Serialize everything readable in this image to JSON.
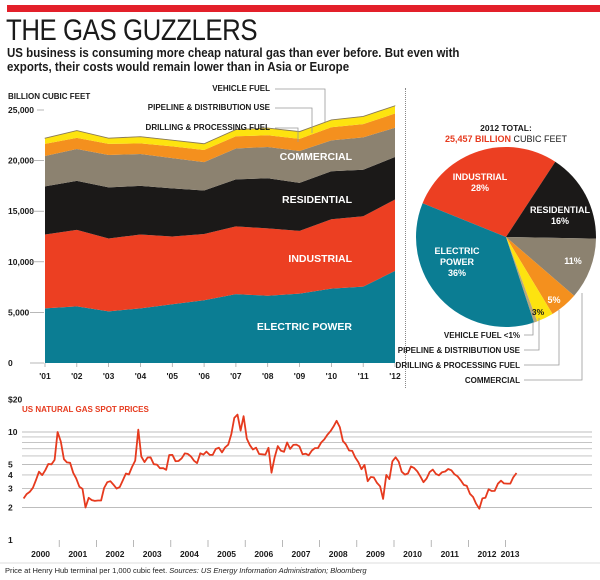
{
  "header": {
    "title": "THE GAS GUZZLERS",
    "subtitle": "US business is consuming more cheap natural gas than ever before. But even with exports, their costs would remain lower than in Asia or Europe"
  },
  "footnote": {
    "text": "Price at Henry Hub terminal per 1,000 cubic feet. ",
    "sources": "Sources: US Energy Information Administration; Bloomberg"
  },
  "chart_data": [
    {
      "type": "area",
      "stacked": true,
      "ylabel": "BILLION CUBIC FEET",
      "ylim": [
        0,
        25000
      ],
      "yticks": [
        "0",
        "5,000",
        "10,000",
        "15,000",
        "20,000",
        "25,000"
      ],
      "categories": [
        "'01",
        "'02",
        "'03",
        "'04",
        "'05",
        "'06",
        "'07",
        "'08",
        "'09",
        "'10",
        "'11",
        "'12"
      ],
      "series": [
        {
          "name": "ELECTRIC POWER",
          "color": "#0b7d93",
          "values": [
            5400,
            5600,
            5100,
            5400,
            5800,
            6200,
            6800,
            6650,
            6850,
            7350,
            7550,
            9100
          ]
        },
        {
          "name": "INDUSTRIAL",
          "color": "#ec3f22",
          "values": [
            7300,
            7550,
            7200,
            7300,
            6700,
            6550,
            6700,
            6650,
            6200,
            6850,
            6950,
            7050
          ]
        },
        {
          "name": "RESIDENTIAL",
          "color": "#1b1918",
          "values": [
            4750,
            4850,
            5050,
            4800,
            4750,
            4300,
            4650,
            4950,
            4750,
            4750,
            4600,
            4200
          ]
        },
        {
          "name": "COMMERCIAL",
          "color": "#8c8270",
          "values": [
            3000,
            3150,
            3200,
            3150,
            3000,
            2800,
            3050,
            3100,
            3150,
            3050,
            3200,
            2900
          ]
        },
        {
          "name": "DRILLING & PROCESSING FUEL",
          "color": "#f4901e",
          "values": [
            1200,
            1100,
            1100,
            1050,
            1150,
            1200,
            1200,
            1150,
            1200,
            1300,
            1300,
            1400
          ]
        },
        {
          "name": "PIPELINE & DISTRIBUTION USE",
          "color": "#fde30f",
          "values": [
            550,
            700,
            550,
            650,
            600,
            600,
            650,
            700,
            700,
            700,
            750,
            750
          ]
        },
        {
          "name": "VEHICLE FUEL",
          "color": "#b9a77a",
          "values": [
            30,
            30,
            30,
            30,
            30,
            30,
            30,
            30,
            30,
            30,
            30,
            30
          ]
        }
      ]
    },
    {
      "type": "pie",
      "title": "2012 TOTAL:",
      "total_value": "25,457 BILLION",
      "total_unit": "CUBIC FEET",
      "slices": [
        {
          "name": "INDUSTRIAL",
          "label": "28%",
          "value": 28,
          "color": "#ec3f22"
        },
        {
          "name": "RESIDENTIAL",
          "label": "16%",
          "value": 16,
          "color": "#1b1918"
        },
        {
          "name": "COMMERCIAL",
          "label": "11%",
          "value": 11,
          "color": "#8c8270"
        },
        {
          "name": "DRILLING & PROCESSING FUEL",
          "label": "5%",
          "value": 5,
          "color": "#f4901e"
        },
        {
          "name": "PIPELINE & DISTRIBUTION USE",
          "label": "3%",
          "value": 3,
          "color": "#fde30f"
        },
        {
          "name": "VEHICLE FUEL",
          "label": "<1%",
          "value": 0.6,
          "color": "#b9a77a"
        },
        {
          "name": "ELECTRIC POWER",
          "label": "36%",
          "value": 36,
          "color": "#0b7d93"
        }
      ],
      "callouts": [
        "VEHICLE FUEL <1%",
        "PIPELINE & DISTRIBUTION USE",
        "DRILLING & PROCESSING FUEL",
        "COMMERCIAL"
      ]
    },
    {
      "type": "line",
      "title": "US NATURAL GAS SPOT PRICES",
      "yscale": "log",
      "ylim": [
        1,
        20
      ],
      "yticks": [
        "1",
        "2",
        "3",
        "4",
        "5",
        "10",
        "$20"
      ],
      "gridlines": [
        2,
        3,
        4,
        5,
        6,
        7,
        8,
        9,
        10
      ],
      "xticks": [
        "2000",
        "2001",
        "2002",
        "2003",
        "2004",
        "2005",
        "2006",
        "2007",
        "2008",
        "2009",
        "2010",
        "2011",
        "2012",
        "2013"
      ],
      "color": "#e63a1e",
      "x_start": "2000-01",
      "frequency": "monthly",
      "values": [
        2.42,
        2.66,
        2.79,
        3.04,
        3.59,
        4.29,
        3.99,
        4.43,
        5.06,
        5.02,
        5.52,
        10.0,
        8.17,
        5.61,
        5.23,
        5.19,
        4.19,
        3.72,
        3.11,
        2.97,
        2.0,
        2.46,
        2.34,
        2.3,
        2.32,
        2.32,
        3.03,
        3.43,
        3.5,
        3.26,
        2.99,
        3.09,
        3.55,
        4.13,
        4.04,
        4.74,
        5.43,
        10.5,
        5.93,
        5.26,
        5.81,
        5.82,
        5.03,
        4.99,
        4.62,
        4.63,
        4.47,
        6.13,
        6.14,
        5.37,
        5.39,
        5.71,
        6.33,
        6.27,
        5.93,
        5.41,
        5.15,
        6.35,
        6.17,
        6.58,
        6.15,
        6.14,
        6.96,
        7.16,
        6.47,
        7.18,
        7.63,
        9.53,
        13.5,
        14.5,
        10.3,
        14.0,
        8.69,
        7.54,
        6.89,
        7.16,
        6.25,
        6.21,
        6.17,
        7.14,
        4.2,
        5.85,
        7.41,
        6.73,
        6.55,
        8.0,
        6.98,
        7.6,
        7.64,
        7.35,
        6.22,
        6.29,
        6.08,
        6.74,
        7.1,
        7.11,
        7.99,
        8.54,
        9.41,
        10.18,
        11.27,
        12.69,
        11.09,
        8.26,
        7.67,
        6.74,
        6.68,
        5.82,
        5.24,
        4.52,
        4.96,
        3.5,
        3.83,
        3.8,
        3.38,
        3.14,
        2.4,
        4.01,
        3.66,
        5.35,
        5.83,
        5.32,
        4.29,
        4.03,
        4.14,
        4.8,
        4.63,
        4.32,
        3.89,
        3.43,
        3.71,
        4.25,
        4.49,
        4.09,
        3.97,
        4.24,
        4.31,
        4.54,
        4.42,
        4.06,
        3.9,
        3.57,
        3.24,
        3.17,
        2.67,
        2.5,
        2.17,
        1.95,
        2.43,
        2.46,
        2.95,
        2.84,
        2.85,
        3.32,
        3.54,
        3.34,
        3.33,
        3.33,
        3.81,
        4.17
      ]
    }
  ]
}
